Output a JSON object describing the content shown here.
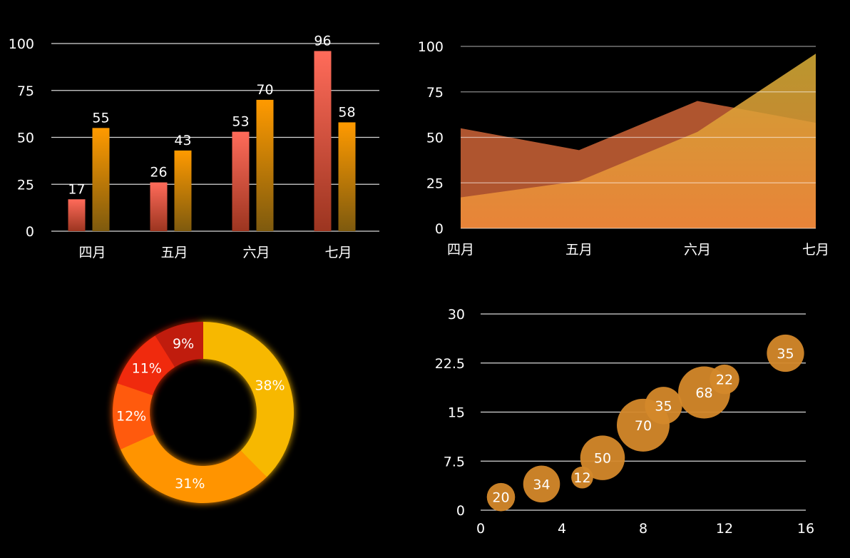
{
  "chart_data": [
    {
      "type": "bar",
      "categories": [
        "四月",
        "五月",
        "六月",
        "七月"
      ],
      "series": [
        {
          "values": [
            17,
            26,
            53,
            96
          ]
        },
        {
          "values": [
            55,
            43,
            70,
            58
          ]
        }
      ],
      "y_ticks": [
        "0",
        "25",
        "50",
        "75",
        "100"
      ],
      "ylim": [
        0,
        100
      ],
      "grid": true,
      "colors": [
        "#ff6b5a",
        "#ff9a00"
      ]
    },
    {
      "type": "area",
      "categories": [
        "四月",
        "五月",
        "六月",
        "七月"
      ],
      "series": [
        {
          "values": [
            55,
            43,
            70,
            58
          ]
        },
        {
          "values": [
            17,
            26,
            53,
            96
          ]
        }
      ],
      "y_ticks": [
        "0",
        "25",
        "50",
        "75",
        "100"
      ],
      "ylim": [
        0,
        100
      ],
      "grid": true,
      "colors": [
        "#b85a32",
        "#f2a43a"
      ]
    },
    {
      "type": "pie",
      "donut": true,
      "slices": [
        {
          "label": "38%",
          "value": 38,
          "color": "#f7b800"
        },
        {
          "label": "31%",
          "value": 31,
          "color": "#ff9400"
        },
        {
          "label": "12%",
          "value": 12,
          "color": "#ff5a0a"
        },
        {
          "label": "11%",
          "value": 11,
          "color": "#f02a10"
        },
        {
          "label": "9%",
          "value": 9,
          "color": "#c01e08"
        }
      ]
    },
    {
      "type": "scatter",
      "bubble": true,
      "points": [
        {
          "x": 1,
          "y": 2,
          "size": 20,
          "label": "20"
        },
        {
          "x": 3,
          "y": 4,
          "size": 34,
          "label": "34"
        },
        {
          "x": 5,
          "y": 5,
          "size": 12,
          "label": "12"
        },
        {
          "x": 6,
          "y": 8,
          "size": 50,
          "label": "50"
        },
        {
          "x": 8,
          "y": 13,
          "size": 70,
          "label": "70"
        },
        {
          "x": 9,
          "y": 16,
          "size": 35,
          "label": "35"
        },
        {
          "x": 11,
          "y": 18,
          "size": 68,
          "label": "68"
        },
        {
          "x": 12,
          "y": 20,
          "size": 22,
          "label": "22"
        },
        {
          "x": 15,
          "y": 24,
          "size": 35,
          "label": "35"
        }
      ],
      "x_ticks": [
        "0",
        "4",
        "8",
        "12",
        "16"
      ],
      "y_ticks": [
        "0",
        "7.5",
        "15",
        "22.5",
        "30"
      ],
      "xlim": [
        0,
        16
      ],
      "ylim": [
        0,
        30
      ],
      "grid": true,
      "color": "#d4882a"
    }
  ]
}
